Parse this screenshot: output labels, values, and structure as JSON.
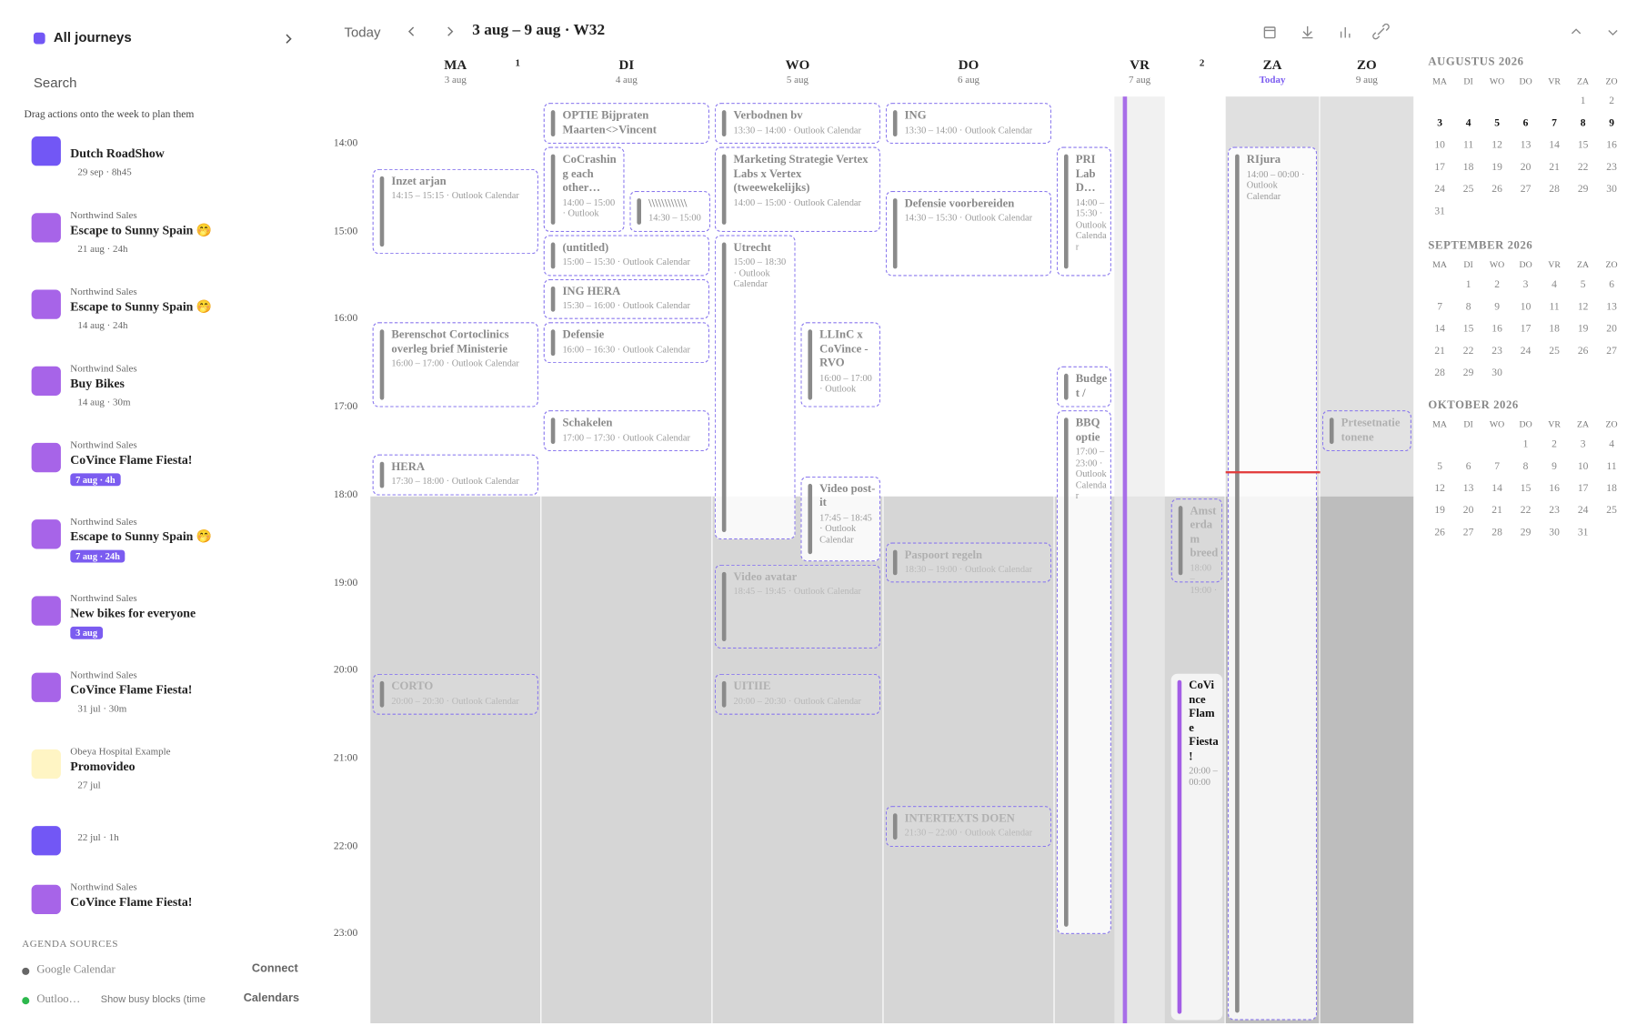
{
  "sidebar": {
    "title": "All journeys",
    "search": "Search",
    "hint": "Drag actions onto the week to plan them",
    "journeys": [
      {
        "title": "Dutch RoadShow",
        "meta": "29 sep · 8h45",
        "color": "#7257f5"
      },
      {
        "org": "Northwind Sales",
        "title": "Escape to Sunny Spain 🤭",
        "meta": "21 aug · 24h",
        "color": "#a764e8"
      },
      {
        "org": "Northwind Sales",
        "title": "Escape to Sunny Spain 🤭",
        "meta": "14 aug · 24h",
        "color": "#a764e8"
      },
      {
        "org": "Northwind Sales",
        "title": "Buy Bikes",
        "meta": "14 aug · 30m",
        "color": "#a764e8"
      },
      {
        "org": "Northwind Sales",
        "title": "CoVince Flame Fiesta!",
        "badge": "7 aug · 4h",
        "color": "#a764e8"
      },
      {
        "org": "Northwind Sales",
        "title": "Escape to Sunny Spain 🤭",
        "badge": "7 aug · 24h",
        "color": "#a764e8"
      },
      {
        "org": "Northwind Sales",
        "title": "New bikes for everyone",
        "badge": "3 aug",
        "color": "#a764e8"
      },
      {
        "org": "Northwind Sales",
        "title": "CoVince Flame Fiesta!",
        "meta": "31 jul · 30m",
        "color": "#a764e8"
      },
      {
        "org": "Obeya Hospital Example",
        "title": "Promovideo",
        "meta": "27 jul",
        "color": "#fff5c4"
      },
      {
        "meta": "22 jul · 1h",
        "color": "#7257f5"
      },
      {
        "org": "Northwind Sales",
        "title": "CoVince Flame Fiesta!",
        "color": "#a764e8"
      }
    ],
    "sources_title": "AGENDA SOURCES",
    "sources": [
      {
        "name": "Google Calendar",
        "action": "Connect",
        "color": "#666666"
      },
      {
        "name": "Outloo…",
        "option": "Show busy blocks (time",
        "action": "Calendars",
        "color": "#2db84d"
      }
    ]
  },
  "toolbar": {
    "today": "Today",
    "range": "3 aug – 9 aug · W32"
  },
  "week": {
    "hours": [
      "14:00",
      "15:00",
      "16:00",
      "17:00",
      "18:00",
      "19:00",
      "20:00",
      "21:00",
      "22:00",
      "23:00"
    ],
    "days": [
      {
        "name": "MA",
        "date": "3 aug",
        "badge": "1",
        "events": [
          {
            "title": "Inzet arjan",
            "detail": "14:15 – 15:15 · Outlook Calendar",
            "start": 14.25,
            "end": 15.25
          },
          {
            "title": "Berenschot Cortoclinics overleg brief Ministerie",
            "detail": "16:00 – 17:00 · Outlook Calendar",
            "start": 16,
            "end": 17
          },
          {
            "title": "HERA",
            "detail": "17:30 – 18:00 · Outlook Calendar",
            "start": 17.5,
            "end": 18
          },
          {
            "title": "CORTO",
            "detail": "20:00 – 20:30 · Outlook Calendar",
            "start": 20,
            "end": 20.5,
            "faded": true
          }
        ]
      },
      {
        "name": "DI",
        "date": "4 aug",
        "events": [
          {
            "title": "OPTIE Bijpraten Maarten<>Vincent",
            "start": 13.5,
            "end": 14
          },
          {
            "title": "CoCrashing each other…",
            "detail": "14:00 – 15:00 · Outlook",
            "start": 14,
            "end": 15
          },
          {
            "title": "\\\\\\\\\\\\\\\\\\\\\\\\",
            "detail": "14:30 – 15:00",
            "start": 14.5,
            "end": 15
          },
          {
            "title": "(untitled)",
            "detail": "15:00 – 15:30 · Outlook Calendar",
            "start": 15,
            "end": 15.5
          },
          {
            "title": "ING HERA",
            "detail": "15:30 – 16:00 · Outlook Calendar",
            "start": 15.5,
            "end": 16
          },
          {
            "title": "Defensie",
            "detail": "16:00 – 16:30 · Outlook Calendar",
            "start": 16,
            "end": 16.5
          },
          {
            "title": "Schakelen",
            "detail": "17:00 – 17:30 · Outlook Calendar",
            "start": 17,
            "end": 17.5
          }
        ]
      },
      {
        "name": "WO",
        "date": "5 aug",
        "events": [
          {
            "title": "Verbodnen bv",
            "detail": "13:30 – 14:00 · Outlook Calendar",
            "start": 13.5,
            "end": 14
          },
          {
            "title": "Marketing Strategie Vertex Labs x Vertex (tweewekelijks)",
            "detail": "14:00 – 15:00 · Outlook Calendar",
            "start": 14,
            "end": 15
          },
          {
            "title": "Utrecht",
            "detail": "15:00 – 18:30 · Outlook Calendar",
            "start": 15,
            "end": 18.5
          },
          {
            "title": "LLInC x CoVince - RVO",
            "detail": "16:00 – 17:00 · Outlook",
            "start": 16,
            "end": 17
          },
          {
            "title": "Video post-it",
            "detail": "17:45 – 18:45 · Outlook Calendar",
            "start": 17.75,
            "end": 18.75
          },
          {
            "title": "Video avatar",
            "detail": "18:45 – 19:45 · Outlook Calendar",
            "start": 18.75,
            "end": 19.75,
            "faded": true
          },
          {
            "title": "UITIIE",
            "detail": "20:00 – 20:30 · Outlook Calendar",
            "start": 20,
            "end": 20.5,
            "faded": true
          }
        ]
      },
      {
        "name": "DO",
        "date": "6 aug",
        "events": [
          {
            "title": "ING",
            "detail": "13:30 – 14:00 · Outlook Calendar",
            "start": 13.5,
            "end": 14
          },
          {
            "title": "Defensie voorbereiden",
            "detail": "14:30 – 15:30 · Outlook Calendar",
            "start": 14.5,
            "end": 15.5
          },
          {
            "title": "Paspoort regeln",
            "detail": "18:30 – 19:00 · Outlook Calendar",
            "start": 18.5,
            "end": 19,
            "faded": true
          },
          {
            "title": "INTERTEXTS DOEN",
            "detail": "21:30 – 22:00 · Outlook Calendar",
            "start": 21.5,
            "end": 22,
            "faded": true
          }
        ]
      },
      {
        "name": "VR",
        "date": "7 aug",
        "badge": "2",
        "events": [
          {
            "title": "PRI Lab D…",
            "detail": "14:00 – 15:30 · Outlook Calendar",
            "start": 14,
            "end": 15.5
          },
          {
            "title": "Budget /",
            "start": 16.5,
            "end": 17
          },
          {
            "title": "BBQ optie",
            "detail": "17:00 – 23:00 · Outlook Calendar",
            "start": 17,
            "end": 23
          },
          {
            "title": "Amsterdam breed",
            "detail": "18:00 – 19:00 ·",
            "start": 18,
            "end": 19,
            "faded": true
          },
          {
            "title": "CoVince Flame Fiesta!",
            "detail": "20:00 – 00:00",
            "start": 20,
            "end": 24,
            "journey": true
          }
        ]
      },
      {
        "name": "ZA",
        "date": "Today",
        "today": true,
        "events": [
          {
            "title": "RIjura",
            "detail": "14:00 – 00:00 · Outlook Calendar",
            "start": 14,
            "end": 24
          }
        ]
      },
      {
        "name": "ZO",
        "date": "9 aug",
        "events": [
          {
            "title": "Prtesetnatie tonene",
            "start": 17,
            "end": 17.5,
            "faded": true
          }
        ]
      }
    ]
  },
  "mini_calendar": {
    "weekdays": [
      "MA",
      "DI",
      "WO",
      "DO",
      "VR",
      "ZA",
      "ZO"
    ],
    "months": [
      {
        "title": "AUGUSTUS 2026",
        "weeks": [
          [
            null,
            null,
            null,
            null,
            null,
            1,
            2
          ],
          [
            3,
            4,
            5,
            6,
            7,
            8,
            9
          ],
          [
            10,
            11,
            12,
            13,
            14,
            15,
            16
          ],
          [
            17,
            18,
            19,
            20,
            21,
            22,
            23
          ],
          [
            24,
            25,
            26,
            27,
            28,
            29,
            30
          ],
          [
            31
          ]
        ]
      },
      {
        "title": "SEPTEMBER 2026",
        "weeks": [
          [
            null,
            1,
            2,
            3,
            4,
            5,
            6
          ],
          [
            7,
            8,
            9,
            10,
            11,
            12,
            13
          ],
          [
            14,
            15,
            16,
            17,
            18,
            19,
            20
          ],
          [
            21,
            22,
            23,
            24,
            25,
            26,
            27
          ],
          [
            28,
            29,
            30
          ]
        ]
      },
      {
        "title": "OKTOBER 2026",
        "weeks": [
          [
            null,
            null,
            null,
            1,
            2,
            3,
            4
          ],
          [
            5,
            6,
            7,
            8,
            9,
            10,
            11
          ],
          [
            12,
            13,
            14,
            15,
            16,
            17,
            18
          ],
          [
            19,
            20,
            21,
            22,
            23,
            24,
            25
          ],
          [
            26,
            27,
            28,
            29,
            30,
            31
          ]
        ]
      }
    ]
  }
}
